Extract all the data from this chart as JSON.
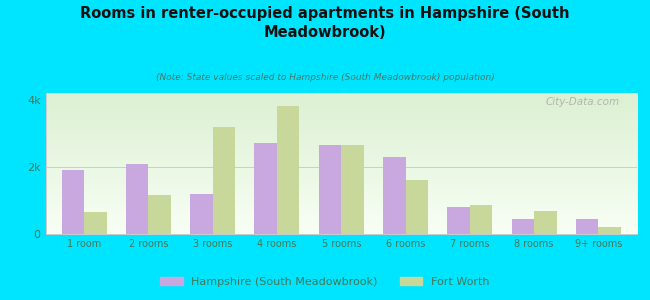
{
  "title": "Rooms in renter-occupied apartments in Hampshire (South\nMeadowbrook)",
  "subtitle": "(Note: State values scaled to Hampshire (South Meadowbrook) population)",
  "categories": [
    "1 room",
    "2 rooms",
    "3 rooms",
    "4 rooms",
    "5 rooms",
    "6 rooms",
    "7 rooms",
    "8 rooms",
    "9+ rooms"
  ],
  "hampshire_values": [
    1900,
    2100,
    1200,
    2700,
    2650,
    2300,
    800,
    450,
    450
  ],
  "fortworth_values": [
    650,
    1150,
    3200,
    3800,
    2650,
    1600,
    850,
    700,
    200
  ],
  "hampshire_color": "#c9a8e0",
  "fortworth_color": "#c8d89a",
  "background_outer": "#00e5ff",
  "background_inner": "#f5fbf0",
  "ylim": [
    0,
    4200
  ],
  "ytick_labels": [
    "0",
    "2k",
    "4k"
  ],
  "title_color": "#111111",
  "subtitle_color": "#447766",
  "axis_label_color": "#447755",
  "watermark": "City-Data.com",
  "legend_hampshire": "Hampshire (South Meadowbrook)",
  "legend_fortworth": "Fort Worth"
}
